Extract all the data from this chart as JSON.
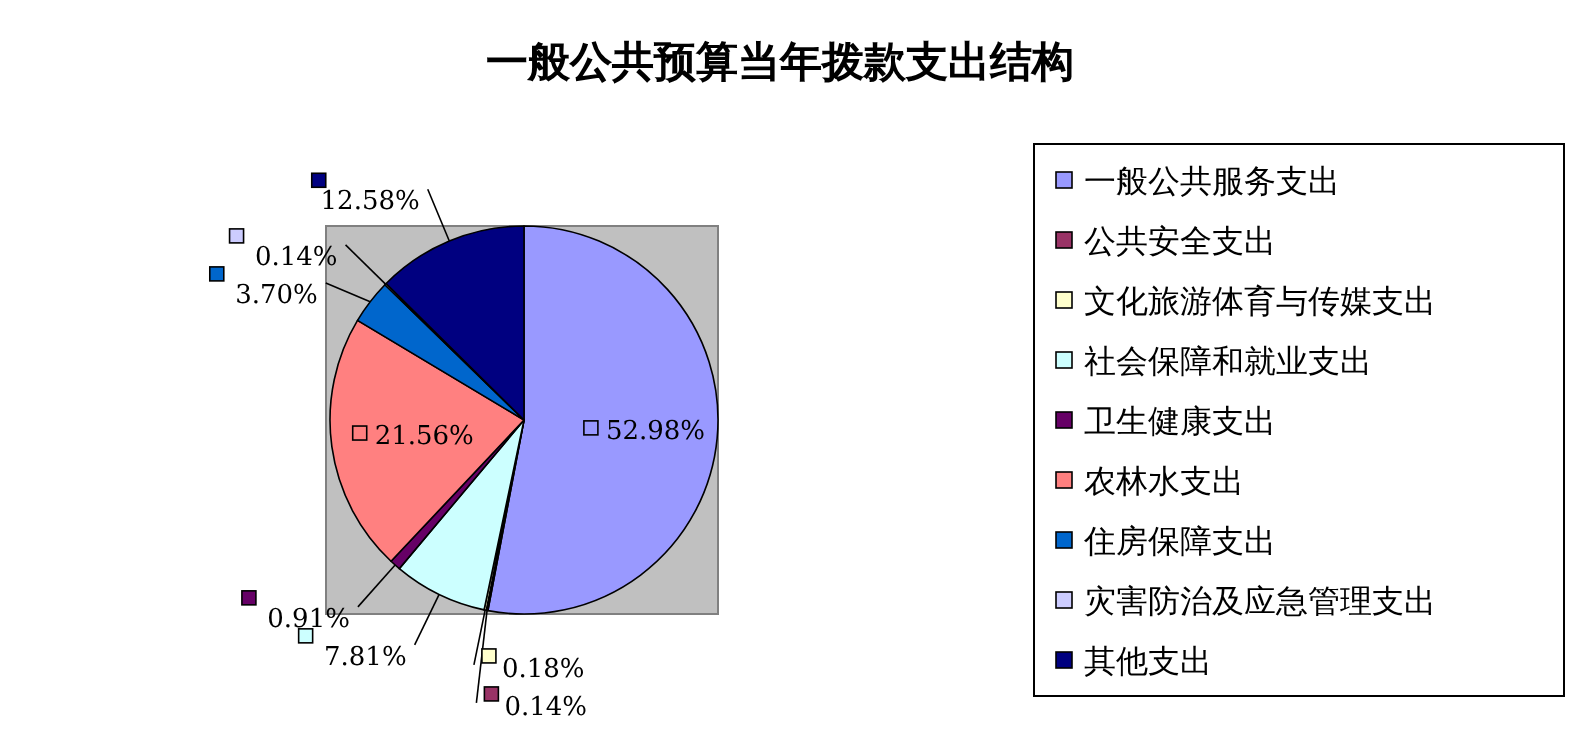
{
  "chart_data": {
    "type": "pie",
    "title": "一般公共预算当年拨款支出结构",
    "categories": [
      "一般公共服务支出",
      "公共安全支出",
      "文化旅游体育与传媒支出",
      "社会保障和就业支出",
      "卫生健康支出",
      "农林水支出",
      "住房保障支出",
      "灾害防治及应急管理支出",
      "其他支出"
    ],
    "values": [
      52.98,
      0.14,
      0.18,
      7.81,
      0.91,
      21.56,
      3.7,
      0.14,
      12.58
    ],
    "colors": [
      "#9999ff",
      "#993366",
      "#ffffcc",
      "#ccffff",
      "#660066",
      "#ff8080",
      "#0066cc",
      "#ccccff",
      "#000080"
    ],
    "value_labels": [
      "52.98%",
      "0.14%",
      "0.18%",
      "7.81%",
      "0.91%",
      "21.56%",
      "3.70%",
      "0.14%",
      "12.58%"
    ],
    "legend": "right"
  }
}
